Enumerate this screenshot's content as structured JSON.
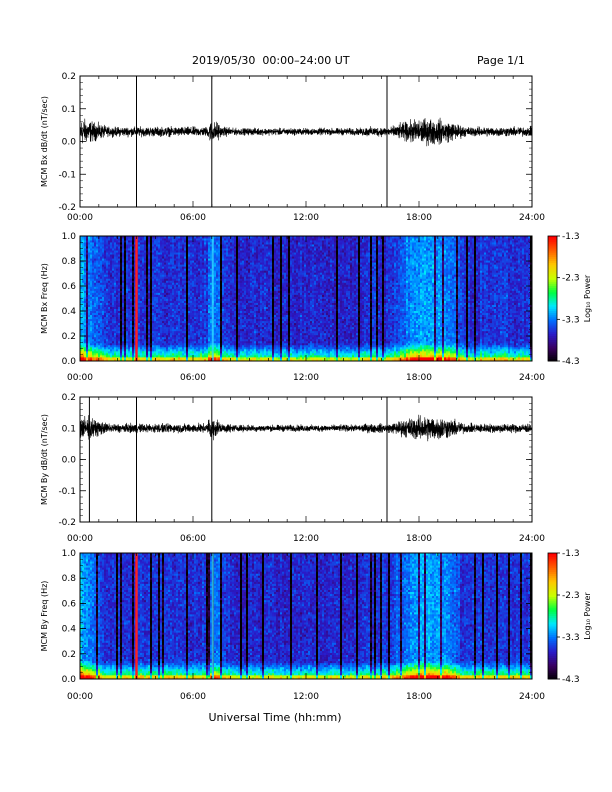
{
  "header": {
    "title": "2019/05/30  00:00–24:00 UT",
    "page": "Page 1/1"
  },
  "xaxis": {
    "label": "Universal Time (hh:mm)",
    "ticks": [
      "00:00",
      "06:00",
      "12:00",
      "18:00",
      "24:00"
    ],
    "range_hours": [
      0,
      24
    ]
  },
  "colorbar": {
    "label": "Log₁₀ Power",
    "ticks": [
      "-1.3",
      "-2.3",
      "-3.3",
      "-4.3"
    ],
    "range": [
      -4.3,
      -1.3
    ],
    "colormap": [
      "#000000",
      "#3a0060",
      "#2a1ac8",
      "#0070ff",
      "#00e8ff",
      "#00ff40",
      "#c8ff00",
      "#ffc800",
      "#ff6000",
      "#ff0000"
    ]
  },
  "chart_data": [
    {
      "type": "line",
      "ylabel": "MCM Bx dB/dt (nT/sec)",
      "ylim": [
        -0.2,
        0.2
      ],
      "yticks": [
        "0.2",
        "0.1",
        "0.0",
        "-0.1",
        "-0.2"
      ],
      "ytick_values": [
        0.2,
        0.1,
        0.0,
        -0.1,
        -0.2
      ],
      "baseline": 0.03,
      "spikes_hours": [
        3.0,
        7.0,
        16.3
      ]
    },
    {
      "type": "heatmap",
      "ylabel": "MCM Bx Freq (Hz)",
      "ylim": [
        0.0,
        1.0
      ],
      "yticks": [
        "1.0",
        "0.8",
        "0.6",
        "0.4",
        "0.2",
        "0.0"
      ],
      "ytick_values": [
        1.0,
        0.8,
        0.6,
        0.4,
        0.2,
        0.0
      ],
      "zlim": [
        -4.3,
        -1.3
      ]
    },
    {
      "type": "line",
      "ylabel": "MCM By dB/dt (nT/sec)",
      "ylim": [
        -0.2,
        0.2
      ],
      "yticks": [
        "0.2",
        "0.1",
        "0.0",
        "-0.1",
        "-0.2"
      ],
      "ytick_values": [
        0.2,
        0.1,
        0.0,
        -0.1,
        -0.2
      ],
      "baseline": 0.1,
      "spikes_hours": [
        0.5,
        3.0,
        7.0,
        16.3
      ]
    },
    {
      "type": "heatmap",
      "ylabel": "MCM By Freq (Hz)",
      "ylim": [
        0.0,
        1.0
      ],
      "yticks": [
        "1.0",
        "0.8",
        "0.6",
        "0.4",
        "0.2",
        "0.0"
      ],
      "ytick_values": [
        1.0,
        0.8,
        0.6,
        0.4,
        0.2,
        0.0
      ],
      "zlim": [
        -4.3,
        -1.3
      ]
    }
  ]
}
